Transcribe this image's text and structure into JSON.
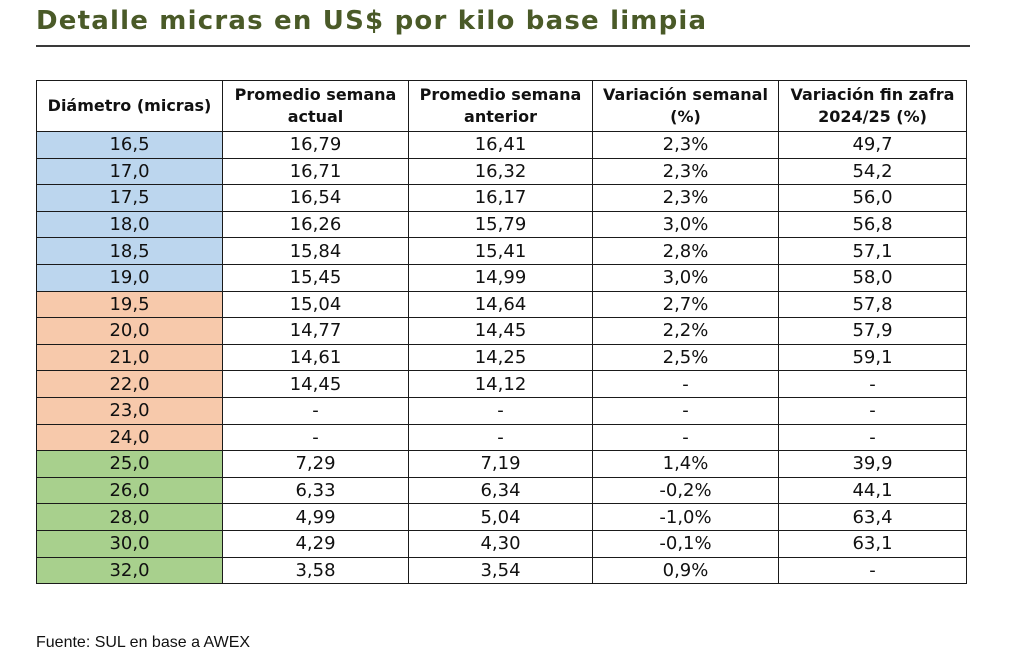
{
  "title": "Detalle micras en US$ por kilo base limpia",
  "headers": {
    "diametro": "Diámetro (micras)",
    "actual_l1": "Promedio semana",
    "actual_l2": "actual",
    "anterior_l1": "Promedio semana",
    "anterior_l2": "anterior",
    "var_sem_l1": "Variación semanal",
    "var_sem_l2": "(%)",
    "var_zafra_l1": "Variación fin zafra",
    "var_zafra_l2": "2024/25 (%)"
  },
  "colors": {
    "blue": "#bcd6ee",
    "orange": "#f7c9ab",
    "green": "#a8d08d",
    "title": "#4a5a28"
  },
  "rows": [
    {
      "diametro": "16,5",
      "actual": "16,79",
      "anterior": "16,41",
      "var_semanal": "2,3%",
      "var_zafra": "49,7",
      "group": "blue"
    },
    {
      "diametro": "17,0",
      "actual": "16,71",
      "anterior": "16,32",
      "var_semanal": "2,3%",
      "var_zafra": "54,2",
      "group": "blue"
    },
    {
      "diametro": "17,5",
      "actual": "16,54",
      "anterior": "16,17",
      "var_semanal": "2,3%",
      "var_zafra": "56,0",
      "group": "blue"
    },
    {
      "diametro": "18,0",
      "actual": "16,26",
      "anterior": "15,79",
      "var_semanal": "3,0%",
      "var_zafra": "56,8",
      "group": "blue"
    },
    {
      "diametro": "18,5",
      "actual": "15,84",
      "anterior": "15,41",
      "var_semanal": "2,8%",
      "var_zafra": "57,1",
      "group": "blue"
    },
    {
      "diametro": "19,0",
      "actual": "15,45",
      "anterior": "14,99",
      "var_semanal": "3,0%",
      "var_zafra": "58,0",
      "group": "blue"
    },
    {
      "diametro": "19,5",
      "actual": "15,04",
      "anterior": "14,64",
      "var_semanal": "2,7%",
      "var_zafra": "57,8",
      "group": "orange"
    },
    {
      "diametro": "20,0",
      "actual": "14,77",
      "anterior": "14,45",
      "var_semanal": "2,2%",
      "var_zafra": "57,9",
      "group": "orange"
    },
    {
      "diametro": "21,0",
      "actual": "14,61",
      "anterior": "14,25",
      "var_semanal": "2,5%",
      "var_zafra": "59,1",
      "group": "orange"
    },
    {
      "diametro": "22,0",
      "actual": "14,45",
      "anterior": "14,12",
      "var_semanal": "-",
      "var_zafra": "-",
      "group": "orange"
    },
    {
      "diametro": "23,0",
      "actual": "-",
      "anterior": "-",
      "var_semanal": "-",
      "var_zafra": "-",
      "group": "orange"
    },
    {
      "diametro": "24,0",
      "actual": "-",
      "anterior": "-",
      "var_semanal": "-",
      "var_zafra": "-",
      "group": "orange"
    },
    {
      "diametro": "25,0",
      "actual": "7,29",
      "anterior": "7,19",
      "var_semanal": "1,4%",
      "var_zafra": "39,9",
      "group": "green"
    },
    {
      "diametro": "26,0",
      "actual": "6,33",
      "anterior": "6,34",
      "var_semanal": "-0,2%",
      "var_zafra": "44,1",
      "group": "green"
    },
    {
      "diametro": "28,0",
      "actual": "4,99",
      "anterior": "5,04",
      "var_semanal": "-1,0%",
      "var_zafra": "63,4",
      "group": "green"
    },
    {
      "diametro": "30,0",
      "actual": "4,29",
      "anterior": "4,30",
      "var_semanal": "-0,1%",
      "var_zafra": "63,1",
      "group": "green"
    },
    {
      "diametro": "32,0",
      "actual": "3,58",
      "anterior": "3,54",
      "var_semanal": "0,9%",
      "var_zafra": "-",
      "group": "green"
    }
  ],
  "footer": "Fuente: SUL en base a AWEX"
}
